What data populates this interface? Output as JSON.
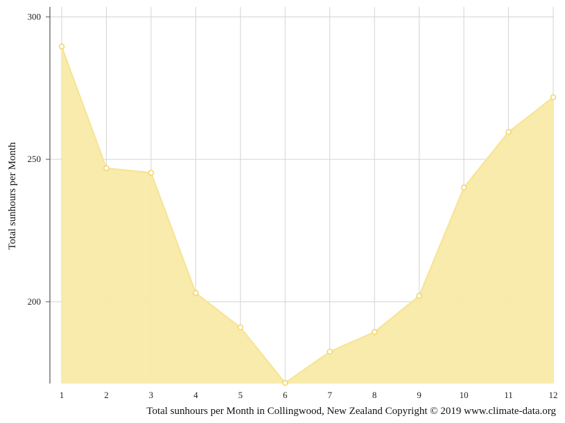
{
  "chart_data": {
    "type": "area",
    "x": [
      1,
      2,
      3,
      4,
      5,
      6,
      7,
      8,
      9,
      10,
      11,
      12
    ],
    "values": [
      289.6,
      246.9,
      245.3,
      203.1,
      191.0,
      171.5,
      182.5,
      189.4,
      202.1,
      240.1,
      259.6,
      271.8
    ],
    "ylabel": "Total sunhours per Month",
    "caption": "Total sunhours per Month in Collingwood, New Zealand Copyright © 2019 www.climate-data.org",
    "ylim": [
      171.3,
      303.5
    ],
    "yticks": [
      200,
      250,
      300
    ],
    "xticks": [
      1,
      2,
      3,
      4,
      5,
      6,
      7,
      8,
      9,
      10,
      11,
      12
    ],
    "grid": true,
    "colors": {
      "fill": "#f8eaa6",
      "line": "#f7e393",
      "marker_fill": "#ffffff",
      "marker_stroke": "#f0d56a",
      "grid": "#d3d3d3",
      "axis": "#555555"
    }
  }
}
